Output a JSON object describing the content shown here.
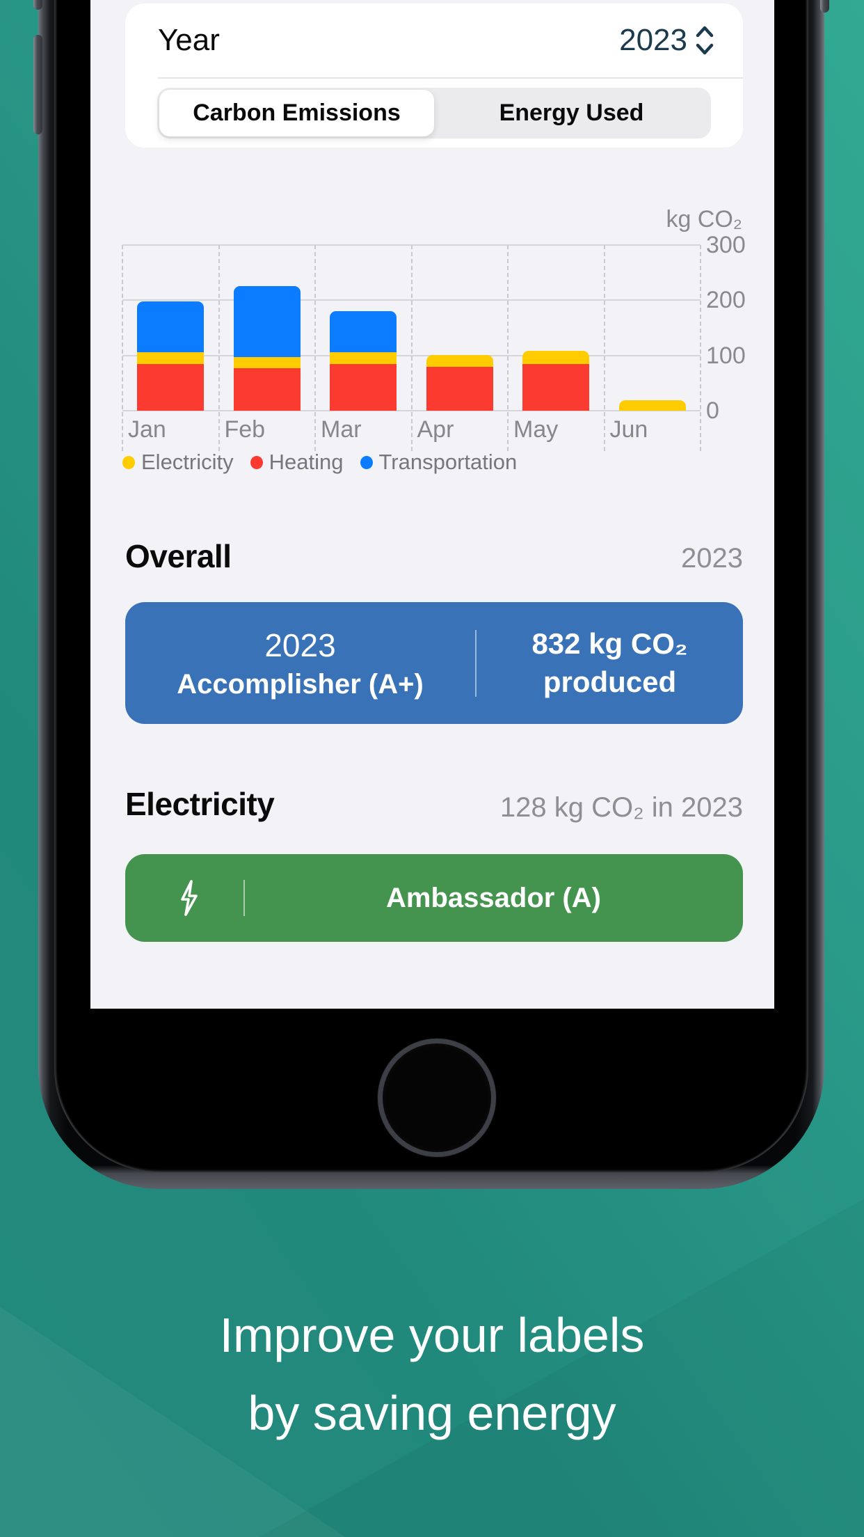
{
  "caption": {
    "line1": "Improve your labels",
    "line2": "by saving energy"
  },
  "app": {
    "year_row": {
      "label": "Year",
      "value": "2023"
    },
    "segmented": {
      "tabs": [
        {
          "label": "Carbon Emissions",
          "selected": true
        },
        {
          "label": "Energy Used",
          "selected": false
        }
      ]
    },
    "overall": {
      "heading": "Overall",
      "period": "2023",
      "badge_title": "2023",
      "badge_subtitle": "Accomplisher (A+)",
      "value_line1": "832 kg CO₂",
      "value_line2": "produced"
    },
    "electricity": {
      "heading": "Electricity",
      "value": "128 kg CO₂ in 2023",
      "badge_label": "Ambassador (A)",
      "icon": "bolt-icon"
    }
  },
  "chart_data": {
    "type": "bar",
    "stacked": true,
    "unit_label": "kg CO₂",
    "categories": [
      "Jan",
      "Feb",
      "Mar",
      "Apr",
      "May",
      "Jun"
    ],
    "series": [
      {
        "name": "Electricity",
        "color": "#FFCC00",
        "values": [
          22,
          20,
          22,
          22,
          23,
          19
        ]
      },
      {
        "name": "Heating",
        "color": "#FB3B30",
        "values": [
          84,
          77,
          84,
          79,
          85,
          0
        ]
      },
      {
        "name": "Transportation",
        "color": "#0B7BFF",
        "values": [
          92,
          129,
          74,
          0,
          0,
          0
        ]
      }
    ],
    "stack_order_bottom_to_top": [
      "Heating",
      "Electricity",
      "Transportation"
    ],
    "ylim": [
      0,
      300
    ],
    "yticks": [
      0,
      100,
      200,
      300
    ],
    "legend_position": "bottom-left",
    "grid": "horizontal-solid-vertical-dashed"
  },
  "colors": {
    "background_teal": "#21897C",
    "background_teal_light": "#32A992",
    "app_background": "#F2F2F7",
    "overall_card_blue": "#3A72B8",
    "electricity_card_green": "#44934E",
    "year_selector_navy": "#1B3A4D",
    "electricity_yellow": "#FFCC00",
    "heating_red": "#FB3B30",
    "transportation_blue": "#0B7BFF"
  }
}
